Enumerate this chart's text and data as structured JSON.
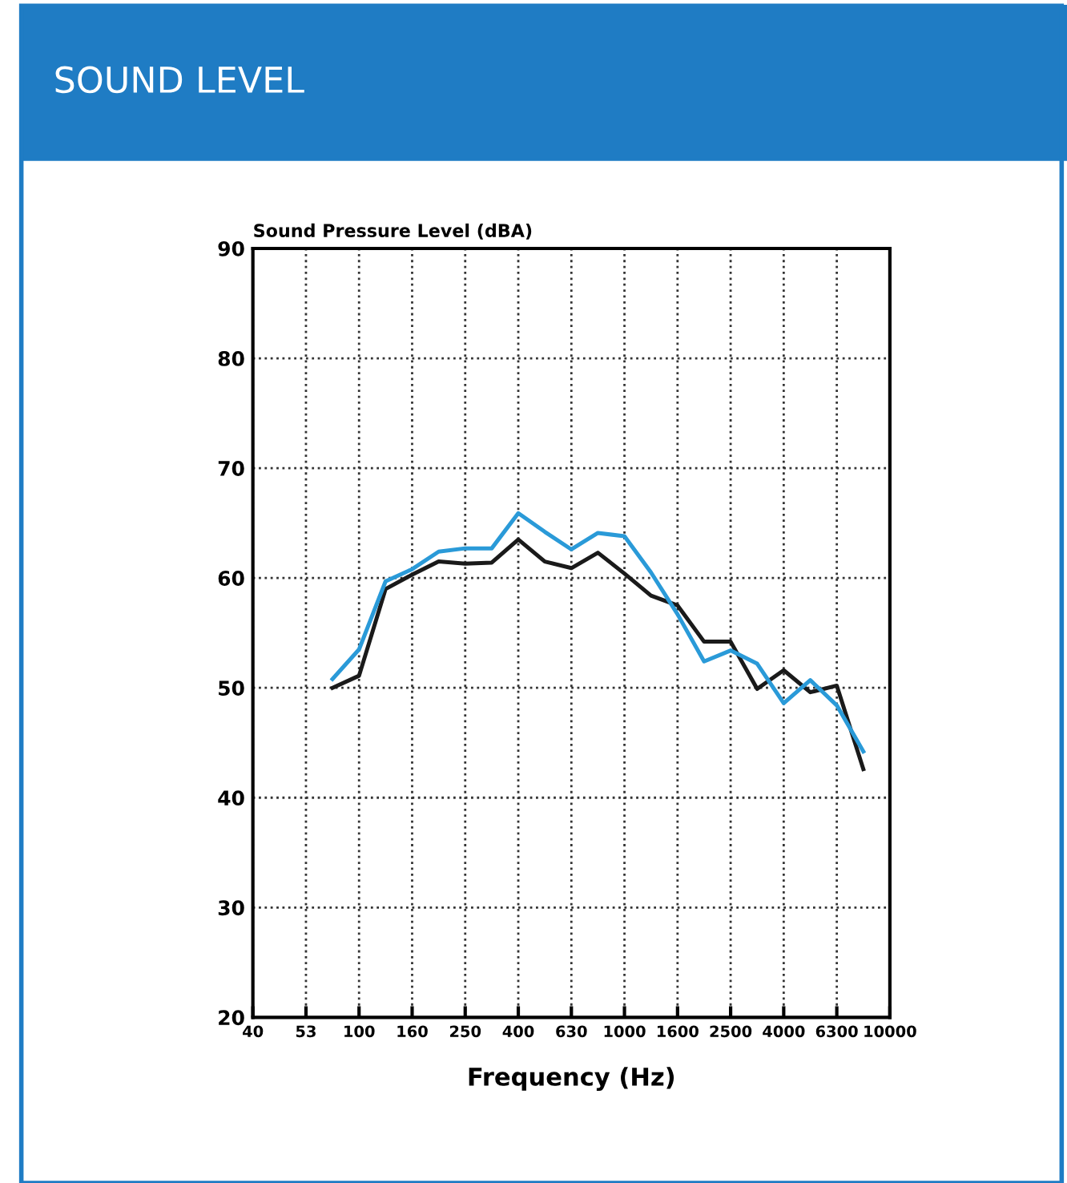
{
  "chart_data": {
    "type": "line",
    "title": "SOUND LEVEL",
    "ylabel": "Sound Pressure Level (dBA)",
    "xlabel": "Frequency (Hz)",
    "categories": [
      "40",
      null,
      "53",
      null,
      "100",
      null,
      "160",
      null,
      "250",
      null,
      "400",
      null,
      "630",
      null,
      "1000",
      null,
      "1600",
      null,
      "2500",
      null,
      "4000",
      null,
      "6300",
      null,
      "10000"
    ],
    "ylim": [
      20,
      90
    ],
    "yticks": [
      20,
      30,
      40,
      50,
      60,
      70,
      80,
      90
    ],
    "grid": true,
    "marker": "none",
    "line_style": "solid",
    "series": [
      {
        "color": "#1a1a1a",
        "values": [
          null,
          null,
          null,
          50.0,
          51.1,
          59.0,
          60.3,
          61.5,
          61.3,
          61.4,
          63.5,
          61.5,
          60.9,
          62.3,
          60.4,
          58.4,
          57.5,
          54.2,
          54.2,
          49.9,
          51.6,
          49.6,
          50.2,
          42.6,
          null
        ]
      },
      {
        "color": "#2a9ad8",
        "values": [
          null,
          null,
          null,
          50.8,
          53.5,
          59.7,
          60.8,
          62.4,
          62.7,
          62.7,
          65.9,
          64.2,
          62.6,
          64.1,
          63.8,
          60.5,
          56.7,
          52.4,
          53.4,
          52.2,
          48.6,
          50.7,
          48.4,
          44.2,
          null
        ]
      }
    ]
  }
}
